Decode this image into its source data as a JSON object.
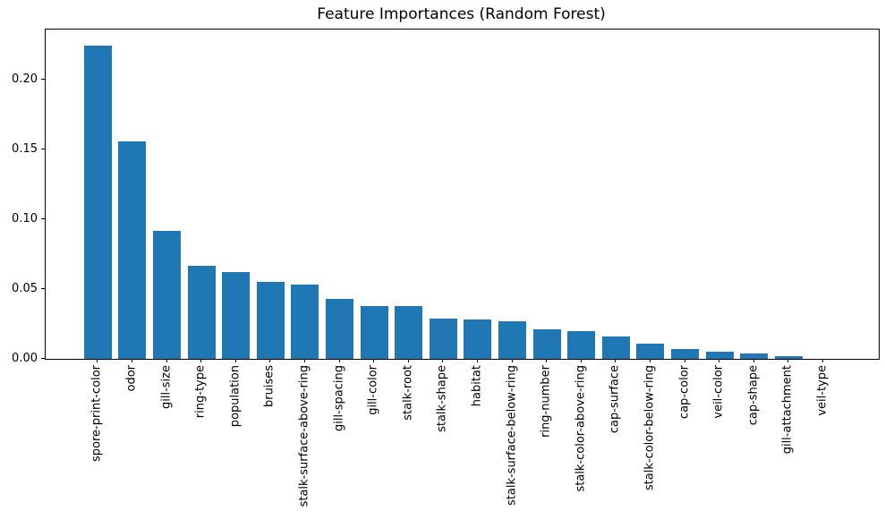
{
  "chart_data": {
    "type": "bar",
    "title": "Feature Importances (Random Forest)",
    "xlabel": "",
    "ylabel": "",
    "categories": [
      "spore-print-color",
      "odor",
      "gill-size",
      "ring-type",
      "population",
      "bruises",
      "stalk-surface-above-ring",
      "gill-spacing",
      "gill-color",
      "stalk-root",
      "stalk-shape",
      "habitat",
      "stalk-surface-below-ring",
      "ring-number",
      "stalk-color-above-ring",
      "cap-surface",
      "stalk-color-below-ring",
      "cap-color",
      "veil-color",
      "cap-shape",
      "gill-attachment",
      "veil-type"
    ],
    "values": [
      0.225,
      0.156,
      0.092,
      0.067,
      0.062,
      0.055,
      0.053,
      0.043,
      0.038,
      0.038,
      0.029,
      0.028,
      0.027,
      0.021,
      0.02,
      0.016,
      0.011,
      0.007,
      0.005,
      0.004,
      0.002,
      0.0
    ],
    "yticks": [
      "0.00",
      "0.05",
      "0.10",
      "0.15",
      "0.20"
    ],
    "ytick_values": [
      0.0,
      0.05,
      0.1,
      0.15,
      0.2
    ],
    "ylim": [
      0,
      0.23625
    ],
    "grid": false,
    "legend": false,
    "colors": {
      "bar": "#1f77b4",
      "axis": "#000000",
      "background": "#ffffff",
      "text": "#000000"
    }
  }
}
